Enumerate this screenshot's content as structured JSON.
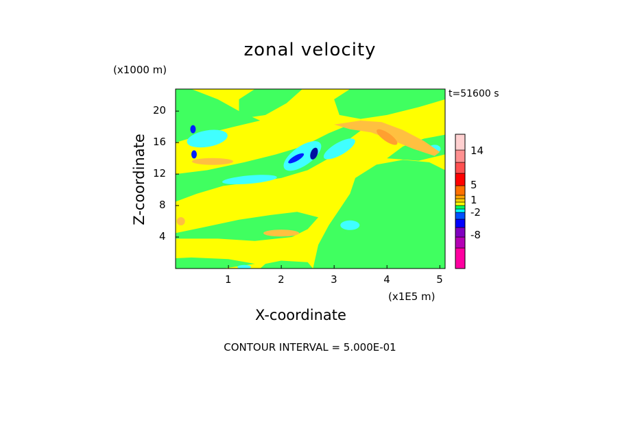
{
  "chart_data": {
    "type": "heatmap",
    "title": "zonal velocity",
    "xlabel": "X-coordinate",
    "ylabel": "Z-coordinate",
    "x_unit": "(x1E5 m)",
    "y_unit": "(x1000 m)",
    "time_label": "t=51600 s",
    "contour_interval_text": "CONTOUR INTERVAL = 5.000E-01",
    "xlim": [
      0,
      5.1
    ],
    "ylim": [
      0,
      22.8
    ],
    "x_ticks": [
      "1",
      "2",
      "3",
      "4",
      "5"
    ],
    "y_ticks": [
      "4",
      "8",
      "12",
      "16",
      "20"
    ],
    "colorbar_labels": [
      "14",
      "5",
      "1",
      "-2",
      "-8"
    ],
    "colorbar_colors": [
      "#ff00a0",
      "#b400b4",
      "#8000c0",
      "#0000ff",
      "#0050ff",
      "#00ffff",
      "#00ff60",
      "#ffff00",
      "#ffd000",
      "#ffa500",
      "#ff7000",
      "#ff0000",
      "#ff5050",
      "#ff9090",
      "#ffd0d0"
    ],
    "field_colors": {
      "background": "#ffff00",
      "green": "#40ff60",
      "cyan": "#40ffff",
      "orange": "#ffc040",
      "dark_orange": "#ffa030",
      "blue": "#0020ff",
      "navy": "#0010a0"
    }
  }
}
